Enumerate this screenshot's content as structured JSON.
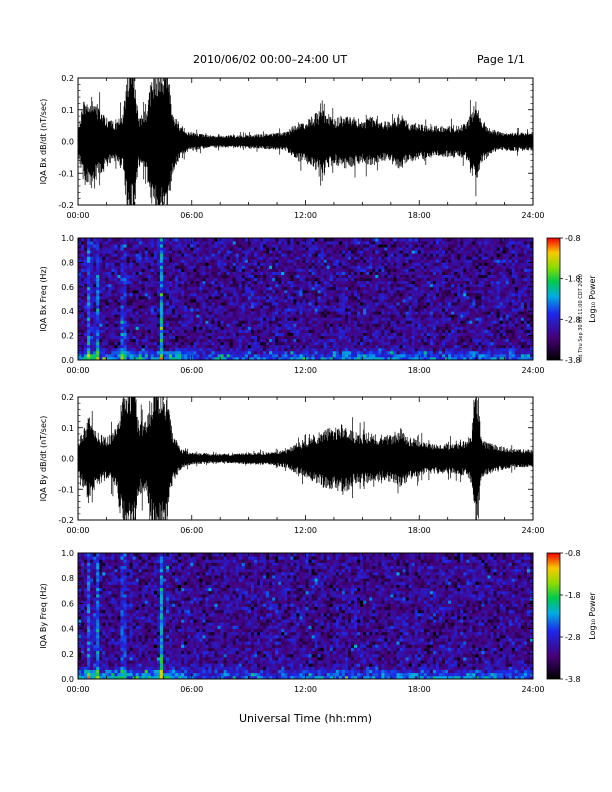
{
  "header": {
    "title": "2010/06/02  00:00–24:00 UT",
    "page": "Page 1/1"
  },
  "footer": {
    "xlabel": "Universal Time (hh:mm)",
    "stamp": "est Thu Sep 30 08:11:00 CDT 2010"
  },
  "chart_data": [
    {
      "type": "line",
      "ylabel": "IQA Bx dB/dt (nT/sec)",
      "ylim": [
        -0.2,
        0.2
      ],
      "yticks": [
        "-0.2",
        "-0.1",
        "0.0",
        "0.1",
        "0.2"
      ],
      "xlim": [
        0,
        24
      ],
      "xticks": [
        "00:00",
        "06:00",
        "12:00",
        "18:00",
        "24:00"
      ],
      "envelope": {
        "hours": [
          0,
          0.3,
          0.6,
          1.0,
          1.5,
          2.0,
          2.4,
          2.6,
          3.0,
          3.2,
          3.6,
          4.0,
          4.3,
          4.7,
          5.0,
          5.5,
          6.0,
          7.0,
          8.0,
          9.0,
          10.0,
          11.0,
          11.5,
          12.0,
          12.5,
          13.0,
          13.5,
          14.0,
          14.5,
          15.0,
          15.5,
          16.0,
          16.5,
          17.0,
          17.5,
          18.0,
          18.5,
          19.0,
          19.5,
          20.0,
          20.5,
          20.8,
          21.0,
          21.3,
          21.8,
          22.3,
          23.0,
          23.5,
          24.0
        ],
        "amplitude": [
          0.04,
          0.13,
          0.16,
          0.12,
          0.08,
          0.06,
          0.1,
          0.25,
          0.22,
          0.08,
          0.1,
          0.25,
          0.25,
          0.25,
          0.1,
          0.04,
          0.03,
          0.02,
          0.02,
          0.02,
          0.025,
          0.03,
          0.06,
          0.07,
          0.09,
          0.1,
          0.07,
          0.09,
          0.08,
          0.07,
          0.08,
          0.06,
          0.07,
          0.09,
          0.06,
          0.06,
          0.05,
          0.05,
          0.05,
          0.05,
          0.06,
          0.11,
          0.13,
          0.07,
          0.04,
          0.03,
          0.03,
          0.03,
          0.03
        ]
      }
    },
    {
      "type": "heatmap",
      "ylabel": "IQA Bx Freq (Hz)",
      "ylim": [
        0,
        1.0
      ],
      "yticks": [
        "0.0",
        "0.2",
        "0.4",
        "0.6",
        "0.8",
        "1.0"
      ],
      "xlim": [
        0,
        24
      ],
      "xticks": [
        "00:00",
        "06:00",
        "12:00",
        "18:00",
        "24:00"
      ],
      "colorbar": {
        "label": "Log₁₀ Power",
        "range": [
          -3.8,
          -0.8
        ],
        "ticks": [
          "-0.8",
          "-1.8",
          "-2.8",
          "-3.8"
        ]
      },
      "vertical_bursts_hours": [
        0.6,
        1.0,
        2.4,
        4.4
      ]
    },
    {
      "type": "line",
      "ylabel": "IQA By dB/dt (nT/sec)",
      "ylim": [
        -0.2,
        0.2
      ],
      "yticks": [
        "-0.2",
        "-0.1",
        "0.0",
        "0.1",
        "0.2"
      ],
      "xlim": [
        0,
        24
      ],
      "xticks": [
        "00:00",
        "06:00",
        "12:00",
        "18:00",
        "24:00"
      ],
      "envelope": {
        "hours": [
          0,
          0.3,
          0.6,
          1.0,
          1.5,
          2.0,
          2.4,
          2.6,
          3.0,
          3.2,
          3.6,
          4.0,
          4.3,
          4.7,
          5.0,
          5.5,
          6.0,
          7.0,
          8.0,
          9.0,
          10.0,
          11.0,
          11.5,
          12.0,
          12.5,
          13.0,
          13.5,
          14.0,
          14.5,
          15.0,
          15.5,
          16.0,
          16.5,
          17.0,
          17.5,
          18.0,
          18.5,
          19.0,
          19.5,
          20.0,
          20.5,
          20.8,
          21.0,
          21.3,
          21.8,
          22.3,
          23.0,
          23.5,
          24.0
        ],
        "amplitude": [
          0.05,
          0.11,
          0.14,
          0.09,
          0.07,
          0.1,
          0.25,
          0.25,
          0.25,
          0.12,
          0.12,
          0.25,
          0.25,
          0.2,
          0.08,
          0.03,
          0.02,
          0.015,
          0.015,
          0.02,
          0.02,
          0.03,
          0.05,
          0.06,
          0.08,
          0.1,
          0.1,
          0.12,
          0.09,
          0.08,
          0.09,
          0.07,
          0.08,
          0.1,
          0.07,
          0.06,
          0.05,
          0.05,
          0.05,
          0.05,
          0.06,
          0.09,
          0.25,
          0.06,
          0.05,
          0.04,
          0.03,
          0.03,
          0.03
        ]
      }
    },
    {
      "type": "heatmap",
      "ylabel": "IQA By Freq (Hz)",
      "ylim": [
        0,
        1.0
      ],
      "yticks": [
        "0.0",
        "0.2",
        "0.4",
        "0.6",
        "0.8",
        "1.0"
      ],
      "xlim": [
        0,
        24
      ],
      "xticks": [
        "00:00",
        "06:00",
        "12:00",
        "18:00",
        "24:00"
      ],
      "colorbar": {
        "label": "Log₁₀ Power",
        "range": [
          -3.8,
          -0.8
        ],
        "ticks": [
          "-0.8",
          "-1.8",
          "-2.8",
          "-3.8"
        ]
      },
      "vertical_bursts_hours": [
        0.6,
        1.0,
        2.4,
        4.4
      ]
    }
  ]
}
